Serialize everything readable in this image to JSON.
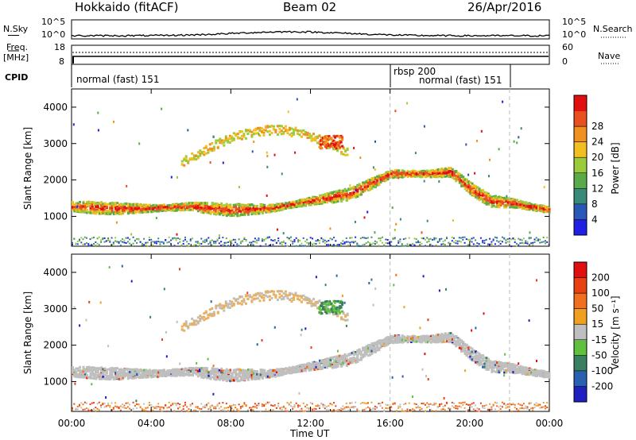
{
  "header": {
    "radar": "Hokkaido (fitACF)",
    "beam": "Beam 02",
    "date": "26/Apr/2016"
  },
  "top_panels": {
    "nsky_label": "N.Sky",
    "nsky_ticks": [
      "10^5",
      "10^0"
    ],
    "nsearch_label": "N.Search",
    "nsearch_ticks": [
      "10^5",
      "10^0"
    ],
    "freq_label_1": "Freq.",
    "freq_label_2": "[MHz]",
    "freq_ticks": [
      "18",
      "8"
    ],
    "nave_label": "Nave",
    "nave_ticks": [
      "60",
      "0"
    ],
    "cpid_label": "CPID",
    "cpid_segments": [
      "normal (fast) 151",
      "rbsp 200",
      "normal (fast) 151"
    ]
  },
  "chart_data": [
    {
      "type": "heatmap",
      "name": "power-panel",
      "ylabel": "Slant Range [km]",
      "xlabel": "",
      "yticks": [
        1000,
        2000,
        3000,
        4000
      ],
      "xticks": [
        "00:00",
        "04:00",
        "08:00",
        "12:00",
        "16:00",
        "20:00",
        "00:00"
      ],
      "xlim": [
        0,
        24
      ],
      "ylim": [
        180,
        4500
      ],
      "colorbar": {
        "label": "Power [dB]",
        "ticks": [
          4,
          8,
          12,
          16,
          20,
          24,
          28
        ],
        "colors": [
          "#1f1fe6",
          "#2a58b8",
          "#3a8a7a",
          "#5aaa4a",
          "#9acb3a",
          "#f0c020",
          "#f09020",
          "#e85020",
          "#e01010"
        ]
      },
      "bands": [
        {
          "x": [
            0,
            2,
            4,
            6,
            8,
            10,
            12,
            14,
            16,
            18,
            19,
            20,
            21,
            22,
            24
          ],
          "y": [
            1300,
            1250,
            1250,
            1300,
            1200,
            1250,
            1450,
            1650,
            2200,
            2200,
            2250,
            1800,
            1450,
            1400,
            1200
          ],
          "power": "high"
        }
      ]
    },
    {
      "type": "heatmap",
      "name": "velocity-panel",
      "ylabel": "Slant Range [km]",
      "xlabel": "Time UT",
      "yticks": [
        1000,
        2000,
        3000,
        4000
      ],
      "xticks": [
        "00:00",
        "04:00",
        "08:00",
        "12:00",
        "16:00",
        "20:00",
        "00:00"
      ],
      "xlim": [
        0,
        24
      ],
      "ylim": [
        180,
        4500
      ],
      "colorbar": {
        "label": "Velocity [m s^-1]",
        "ticks": [
          "200",
          "100",
          "50",
          "15",
          "-15",
          "-50",
          "-100",
          "-200"
        ],
        "colors": [
          "#2020c0",
          "#2a60b0",
          "#3a8060",
          "#60c040",
          "#bfbfbf",
          "#f0a020",
          "#f07020",
          "#e84010",
          "#e01010"
        ]
      }
    }
  ],
  "colors": {
    "ground_scatter": "#bfbfbf",
    "dashed_marker": "#bbbbbb"
  }
}
